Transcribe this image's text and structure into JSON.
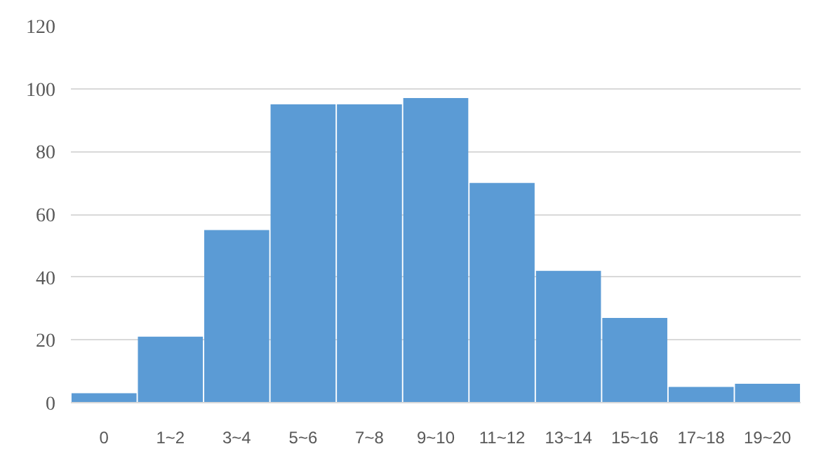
{
  "chart_data": {
    "type": "bar",
    "categories": [
      "0",
      "1~2",
      "3~4",
      "5~6",
      "7~8",
      "9~10",
      "11~12",
      "13~14",
      "15~16",
      "17~18",
      "19~20"
    ],
    "values": [
      3,
      21,
      55,
      95,
      95,
      97,
      70,
      42,
      27,
      5,
      6
    ],
    "color": "#5b9bd5",
    "ylim": [
      0,
      120
    ],
    "yticks": [
      0,
      20,
      40,
      60,
      80,
      100,
      120
    ],
    "grid": "y"
  }
}
